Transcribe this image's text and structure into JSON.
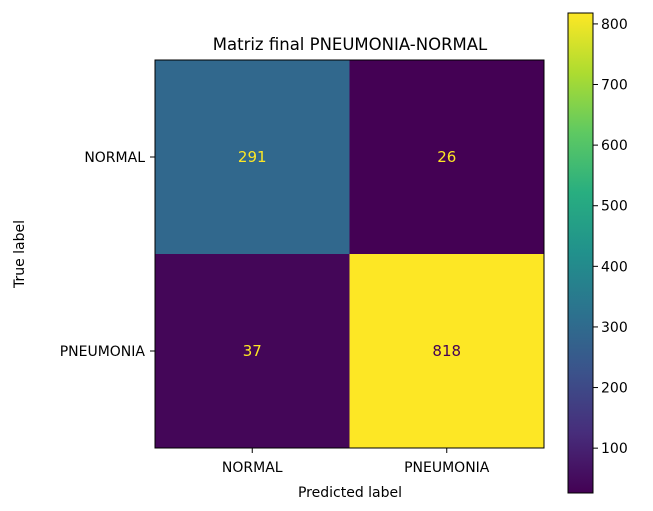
{
  "chart_data": {
    "type": "heatmap",
    "title": "Matriz final PNEUMONIA-NORMAL",
    "xlabel": "Predicted label",
    "ylabel": "True label",
    "x_categories": [
      "NORMAL",
      "PNEUMONIA"
    ],
    "y_categories": [
      "NORMAL",
      "PNEUMONIA"
    ],
    "values": [
      [
        291,
        26
      ],
      [
        37,
        818
      ]
    ],
    "colormap": "viridis",
    "colorbar": {
      "range": [
        26,
        818
      ],
      "ticks": [
        100,
        200,
        300,
        400,
        500,
        600,
        700,
        800
      ]
    },
    "text_color_dark_cells": "#fde725",
    "text_color_light_cells": "#440154"
  }
}
